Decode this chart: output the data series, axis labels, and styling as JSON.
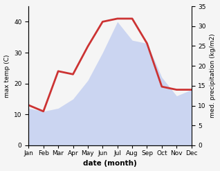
{
  "months": [
    "Jan",
    "Feb",
    "Mar",
    "Apr",
    "May",
    "Jun",
    "Jul",
    "Aug",
    "Sep",
    "Oct",
    "Nov",
    "Dec"
  ],
  "temperature": [
    13,
    11,
    24,
    23,
    32,
    40,
    41,
    41,
    33,
    19,
    18,
    18
  ],
  "precipitation_left_scale": [
    12,
    11,
    12,
    15,
    21,
    30,
    40,
    34,
    33,
    22,
    16,
    18
  ],
  "temp_color": "#cc3333",
  "precip_color": "#aabbee",
  "precip_fill_alpha": 0.55,
  "left_ylabel": "max temp (C)",
  "right_ylabel": "med. precipitation (kg/m2)",
  "xlabel": "date (month)",
  "left_ylim": [
    0,
    45
  ],
  "right_ylim": [
    0,
    35
  ],
  "left_yticks": [
    0,
    10,
    20,
    30,
    40
  ],
  "right_yticks": [
    0,
    5,
    10,
    15,
    20,
    25,
    30,
    35
  ],
  "temp_linewidth": 2.0,
  "bg_color": "#f5f5f5",
  "fig_width": 3.18,
  "fig_height": 2.47,
  "dpi": 100
}
